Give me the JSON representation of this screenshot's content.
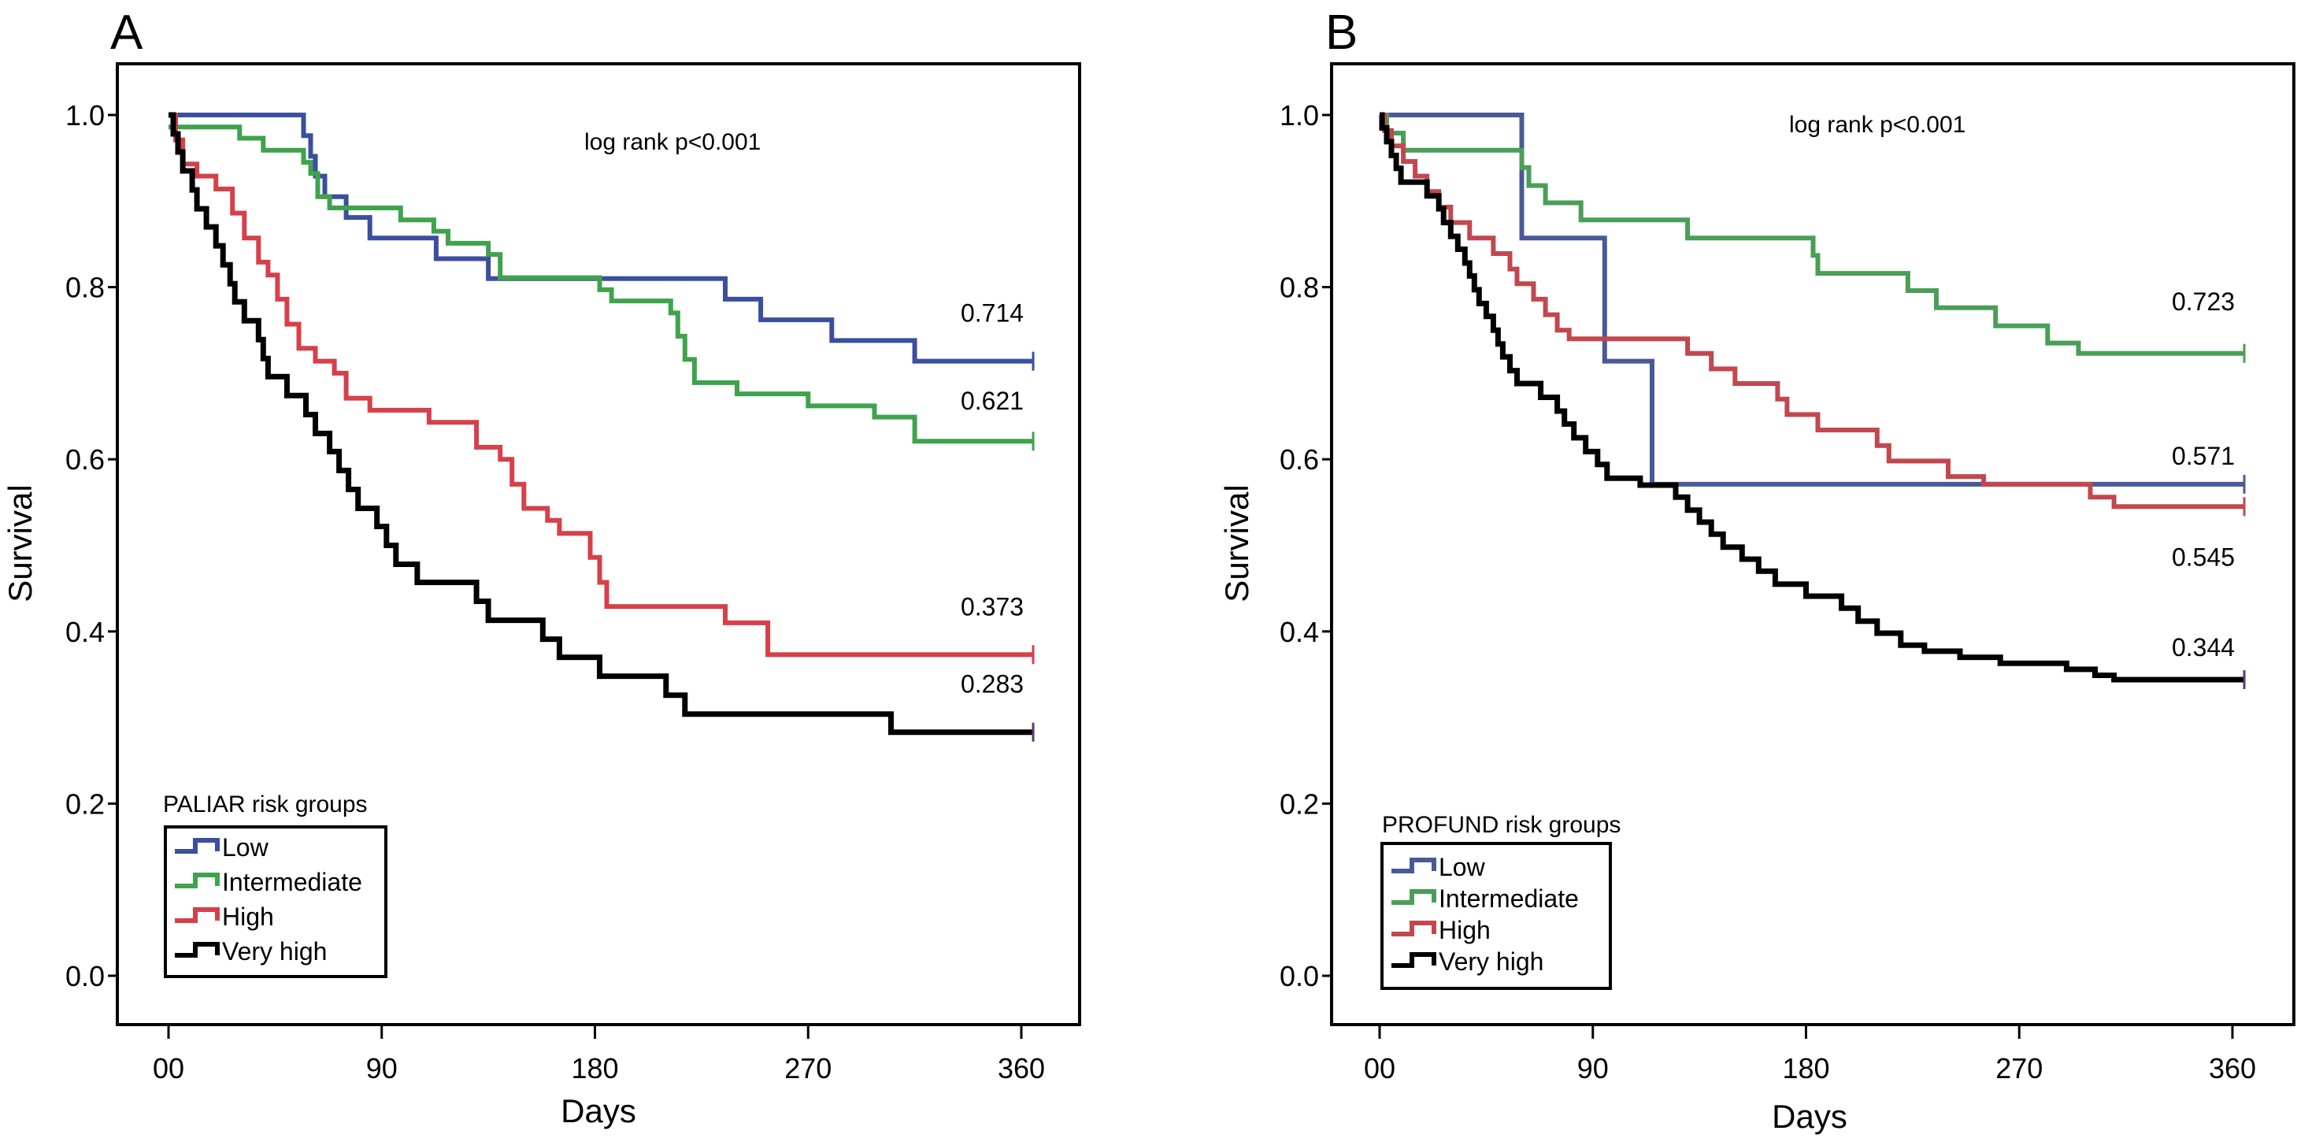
{
  "chart_data": [
    {
      "type": "line",
      "subtype": "kaplan-meier step",
      "panel": "A",
      "title": "",
      "xlabel": "Days",
      "ylabel": "Survival",
      "xlim": [
        -10,
        380
      ],
      "ylim": [
        -0.05,
        1.06
      ],
      "x_ticks": [
        0,
        90,
        180,
        270,
        360
      ],
      "x_tick_labels": [
        "00",
        "90",
        "180",
        "270",
        "360"
      ],
      "y_ticks": [
        0.0,
        0.2,
        0.4,
        0.6,
        0.8,
        1.0
      ],
      "y_tick_labels": [
        "0.0",
        "0.2",
        "0.4",
        "0.6",
        "0.8",
        "1.0"
      ],
      "grid": false,
      "annotation": "log rank p<0.001",
      "legend": {
        "title": "PALIAR risk groups",
        "placement": "bottom-left"
      },
      "series": [
        {
          "name": "Low",
          "color": "#3b4f9e",
          "end_label": "0.714",
          "steps": [
            [
              0,
              1.0
            ],
            [
              57,
              0.976
            ],
            [
              60,
              0.952
            ],
            [
              62,
              0.929
            ],
            [
              66,
              0.905
            ],
            [
              75,
              0.881
            ],
            [
              85,
              0.857
            ],
            [
              113,
              0.833
            ],
            [
              135,
              0.81
            ],
            [
              235,
              0.786
            ],
            [
              250,
              0.762
            ],
            [
              280,
              0.738
            ],
            [
              315,
              0.714
            ],
            [
              365,
              0.714
            ]
          ]
        },
        {
          "name": "Intermediate",
          "color": "#3fa34d",
          "end_label": "0.621",
          "steps": [
            [
              0,
              0.986
            ],
            [
              30,
              0.973
            ],
            [
              40,
              0.959
            ],
            [
              57,
              0.945
            ],
            [
              60,
              0.932
            ],
            [
              63,
              0.905
            ],
            [
              68,
              0.892
            ],
            [
              98,
              0.878
            ],
            [
              112,
              0.865
            ],
            [
              118,
              0.851
            ],
            [
              135,
              0.838
            ],
            [
              140,
              0.811
            ],
            [
              182,
              0.797
            ],
            [
              187,
              0.784
            ],
            [
              212,
              0.77
            ],
            [
              215,
              0.743
            ],
            [
              218,
              0.716
            ],
            [
              222,
              0.689
            ],
            [
              240,
              0.676
            ],
            [
              270,
              0.662
            ],
            [
              298,
              0.649
            ],
            [
              315,
              0.635
            ],
            [
              315,
              0.621
            ],
            [
              365,
              0.621
            ]
          ]
        },
        {
          "name": "High",
          "color": "#d6404a",
          "end_label": "0.373",
          "steps": [
            [
              0,
              1.0
            ],
            [
              3,
              0.971
            ],
            [
              6,
              0.943
            ],
            [
              12,
              0.929
            ],
            [
              20,
              0.914
            ],
            [
              27,
              0.886
            ],
            [
              32,
              0.857
            ],
            [
              38,
              0.829
            ],
            [
              42,
              0.814
            ],
            [
              46,
              0.786
            ],
            [
              50,
              0.757
            ],
            [
              55,
              0.729
            ],
            [
              62,
              0.714
            ],
            [
              70,
              0.7
            ],
            [
              75,
              0.671
            ],
            [
              85,
              0.657
            ],
            [
              110,
              0.643
            ],
            [
              130,
              0.614
            ],
            [
              140,
              0.6
            ],
            [
              145,
              0.571
            ],
            [
              150,
              0.543
            ],
            [
              160,
              0.529
            ],
            [
              165,
              0.514
            ],
            [
              178,
              0.486
            ],
            [
              182,
              0.457
            ],
            [
              185,
              0.429
            ],
            [
              235,
              0.41
            ],
            [
              253,
              0.373
            ],
            [
              365,
              0.373
            ]
          ]
        },
        {
          "name": "Very high",
          "color": "#000000",
          "end_label": "0.283",
          "steps": [
            [
              0,
              1.0
            ],
            [
              2,
              0.978
            ],
            [
              4,
              0.957
            ],
            [
              6,
              0.935
            ],
            [
              10,
              0.913
            ],
            [
              12,
              0.891
            ],
            [
              16,
              0.87
            ],
            [
              20,
              0.848
            ],
            [
              23,
              0.826
            ],
            [
              26,
              0.804
            ],
            [
              28,
              0.783
            ],
            [
              32,
              0.761
            ],
            [
              38,
              0.739
            ],
            [
              40,
              0.717
            ],
            [
              42,
              0.696
            ],
            [
              50,
              0.674
            ],
            [
              58,
              0.652
            ],
            [
              62,
              0.63
            ],
            [
              68,
              0.609
            ],
            [
              72,
              0.587
            ],
            [
              76,
              0.565
            ],
            [
              80,
              0.543
            ],
            [
              88,
              0.522
            ],
            [
              92,
              0.5
            ],
            [
              96,
              0.478
            ],
            [
              105,
              0.457
            ],
            [
              130,
              0.435
            ],
            [
              135,
              0.413
            ],
            [
              158,
              0.391
            ],
            [
              165,
              0.37
            ],
            [
              182,
              0.348
            ],
            [
              210,
              0.326
            ],
            [
              218,
              0.304
            ],
            [
              305,
              0.283
            ],
            [
              365,
              0.283
            ]
          ]
        }
      ]
    },
    {
      "type": "line",
      "subtype": "kaplan-meier step",
      "panel": "B",
      "title": "",
      "xlabel": "Days",
      "ylabel": "Survival",
      "xlim": [
        -10,
        380
      ],
      "ylim": [
        -0.05,
        1.06
      ],
      "x_ticks": [
        0,
        90,
        180,
        270,
        360
      ],
      "x_tick_labels": [
        "00",
        "90",
        "180",
        "270",
        "360"
      ],
      "y_ticks": [
        0.0,
        0.2,
        0.4,
        0.6,
        0.8,
        1.0
      ],
      "y_tick_labels": [
        "0.0",
        "0.2",
        "0.4",
        "0.6",
        "0.8",
        "1.0"
      ],
      "grid": false,
      "annotation": "log rank p<0.001",
      "legend": {
        "title": "PROFUND risk groups",
        "placement": "bottom-left"
      },
      "series": [
        {
          "name": "Low",
          "color": "#4a5a96",
          "end_label": "0.571",
          "steps": [
            [
              0,
              1.0
            ],
            [
              60,
              0.857
            ],
            [
              95,
              0.714
            ],
            [
              115,
              0.571
            ],
            [
              365,
              0.571
            ]
          ]
        },
        {
          "name": "Intermediate",
          "color": "#4a9e58",
          "end_label": "0.723",
          "steps": [
            [
              0,
              1.0
            ],
            [
              3,
              0.979
            ],
            [
              10,
              0.959
            ],
            [
              60,
              0.939
            ],
            [
              63,
              0.918
            ],
            [
              70,
              0.898
            ],
            [
              85,
              0.878
            ],
            [
              130,
              0.857
            ],
            [
              183,
              0.837
            ],
            [
              185,
              0.816
            ],
            [
              223,
              0.796
            ],
            [
              235,
              0.776
            ],
            [
              260,
              0.755
            ],
            [
              282,
              0.735
            ],
            [
              295,
              0.723
            ],
            [
              365,
              0.723
            ]
          ]
        },
        {
          "name": "High",
          "color": "#c2474f",
          "end_label": "0.545",
          "steps": [
            [
              0,
              1.0
            ],
            [
              2,
              0.982
            ],
            [
              5,
              0.964
            ],
            [
              10,
              0.946
            ],
            [
              15,
              0.929
            ],
            [
              20,
              0.911
            ],
            [
              25,
              0.893
            ],
            [
              30,
              0.875
            ],
            [
              38,
              0.857
            ],
            [
              48,
              0.839
            ],
            [
              55,
              0.821
            ],
            [
              58,
              0.804
            ],
            [
              65,
              0.786
            ],
            [
              70,
              0.768
            ],
            [
              75,
              0.75
            ],
            [
              80,
              0.74
            ],
            [
              130,
              0.723
            ],
            [
              140,
              0.705
            ],
            [
              150,
              0.688
            ],
            [
              168,
              0.67
            ],
            [
              172,
              0.652
            ],
            [
              185,
              0.634
            ],
            [
              210,
              0.616
            ],
            [
              215,
              0.598
            ],
            [
              240,
              0.58
            ],
            [
              255,
              0.571
            ],
            [
              300,
              0.556
            ],
            [
              310,
              0.545
            ],
            [
              365,
              0.545
            ]
          ]
        },
        {
          "name": "Very high",
          "color": "#000000",
          "end_label": "0.344",
          "steps": [
            [
              0,
              1.0
            ],
            [
              1,
              0.985
            ],
            [
              3,
              0.969
            ],
            [
              5,
              0.953
            ],
            [
              7,
              0.938
            ],
            [
              9,
              0.922
            ],
            [
              20,
              0.906
            ],
            [
              25,
              0.891
            ],
            [
              27,
              0.875
            ],
            [
              30,
              0.859
            ],
            [
              33,
              0.844
            ],
            [
              36,
              0.828
            ],
            [
              38,
              0.813
            ],
            [
              40,
              0.797
            ],
            [
              42,
              0.781
            ],
            [
              45,
              0.766
            ],
            [
              48,
              0.75
            ],
            [
              50,
              0.734
            ],
            [
              52,
              0.719
            ],
            [
              55,
              0.703
            ],
            [
              58,
              0.688
            ],
            [
              68,
              0.672
            ],
            [
              75,
              0.656
            ],
            [
              78,
              0.641
            ],
            [
              82,
              0.625
            ],
            [
              87,
              0.609
            ],
            [
              92,
              0.594
            ],
            [
              96,
              0.578
            ],
            [
              110,
              0.57
            ],
            [
              125,
              0.556
            ],
            [
              130,
              0.541
            ],
            [
              135,
              0.527
            ],
            [
              140,
              0.513
            ],
            [
              145,
              0.498
            ],
            [
              153,
              0.484
            ],
            [
              160,
              0.47
            ],
            [
              167,
              0.455
            ],
            [
              180,
              0.441
            ],
            [
              195,
              0.427
            ],
            [
              202,
              0.412
            ],
            [
              210,
              0.398
            ],
            [
              220,
              0.384
            ],
            [
              230,
              0.377
            ],
            [
              245,
              0.37
            ],
            [
              262,
              0.363
            ],
            [
              290,
              0.356
            ],
            [
              302,
              0.349
            ],
            [
              310,
              0.344
            ],
            [
              365,
              0.344
            ]
          ]
        }
      ]
    }
  ]
}
